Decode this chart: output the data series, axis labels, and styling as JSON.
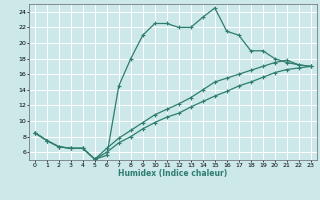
{
  "xlabel": "Humidex (Indice chaleur)",
  "bg_color": "#cce8e8",
  "grid_color": "#ffffff",
  "line_color": "#2e7d6e",
  "xlim": [
    -0.5,
    23.5
  ],
  "ylim": [
    5.0,
    25.0
  ],
  "xticks": [
    0,
    1,
    2,
    3,
    4,
    5,
    6,
    7,
    8,
    9,
    10,
    11,
    12,
    13,
    14,
    15,
    16,
    17,
    18,
    19,
    20,
    21,
    22,
    23
  ],
  "yticks": [
    6,
    8,
    10,
    12,
    14,
    16,
    18,
    20,
    22,
    24
  ],
  "line1_x": [
    0,
    1,
    2,
    3,
    4,
    5,
    6,
    7,
    8,
    9,
    10,
    11,
    12,
    13,
    14,
    15,
    16,
    17,
    18,
    19,
    20,
    21,
    22,
    23
  ],
  "line1_y": [
    8.5,
    7.5,
    6.7,
    6.5,
    6.5,
    5.1,
    5.6,
    14.5,
    18.0,
    21.0,
    22.5,
    22.5,
    22.0,
    22.0,
    23.3,
    24.5,
    21.5,
    21.0,
    19.0,
    19.0,
    18.0,
    17.5,
    17.2,
    17.0
  ],
  "line2_x": [
    0,
    1,
    2,
    3,
    4,
    5,
    6,
    7,
    8,
    9,
    10,
    11,
    12,
    13,
    14,
    15,
    16,
    17,
    18,
    19,
    20,
    21,
    22,
    23
  ],
  "line2_y": [
    8.5,
    7.5,
    6.7,
    6.5,
    6.5,
    5.1,
    6.5,
    7.8,
    8.8,
    9.8,
    10.8,
    11.5,
    12.2,
    13.0,
    14.0,
    15.0,
    15.5,
    16.0,
    16.5,
    17.0,
    17.5,
    17.8,
    17.2,
    17.0
  ],
  "line3_x": [
    0,
    1,
    2,
    3,
    4,
    5,
    6,
    7,
    8,
    9,
    10,
    11,
    12,
    13,
    14,
    15,
    16,
    17,
    18,
    19,
    20,
    21,
    22,
    23
  ],
  "line3_y": [
    8.5,
    7.5,
    6.7,
    6.5,
    6.5,
    5.1,
    6.0,
    7.2,
    8.0,
    9.0,
    9.8,
    10.5,
    11.0,
    11.8,
    12.5,
    13.2,
    13.8,
    14.5,
    15.0,
    15.6,
    16.2,
    16.6,
    16.8,
    17.0
  ]
}
